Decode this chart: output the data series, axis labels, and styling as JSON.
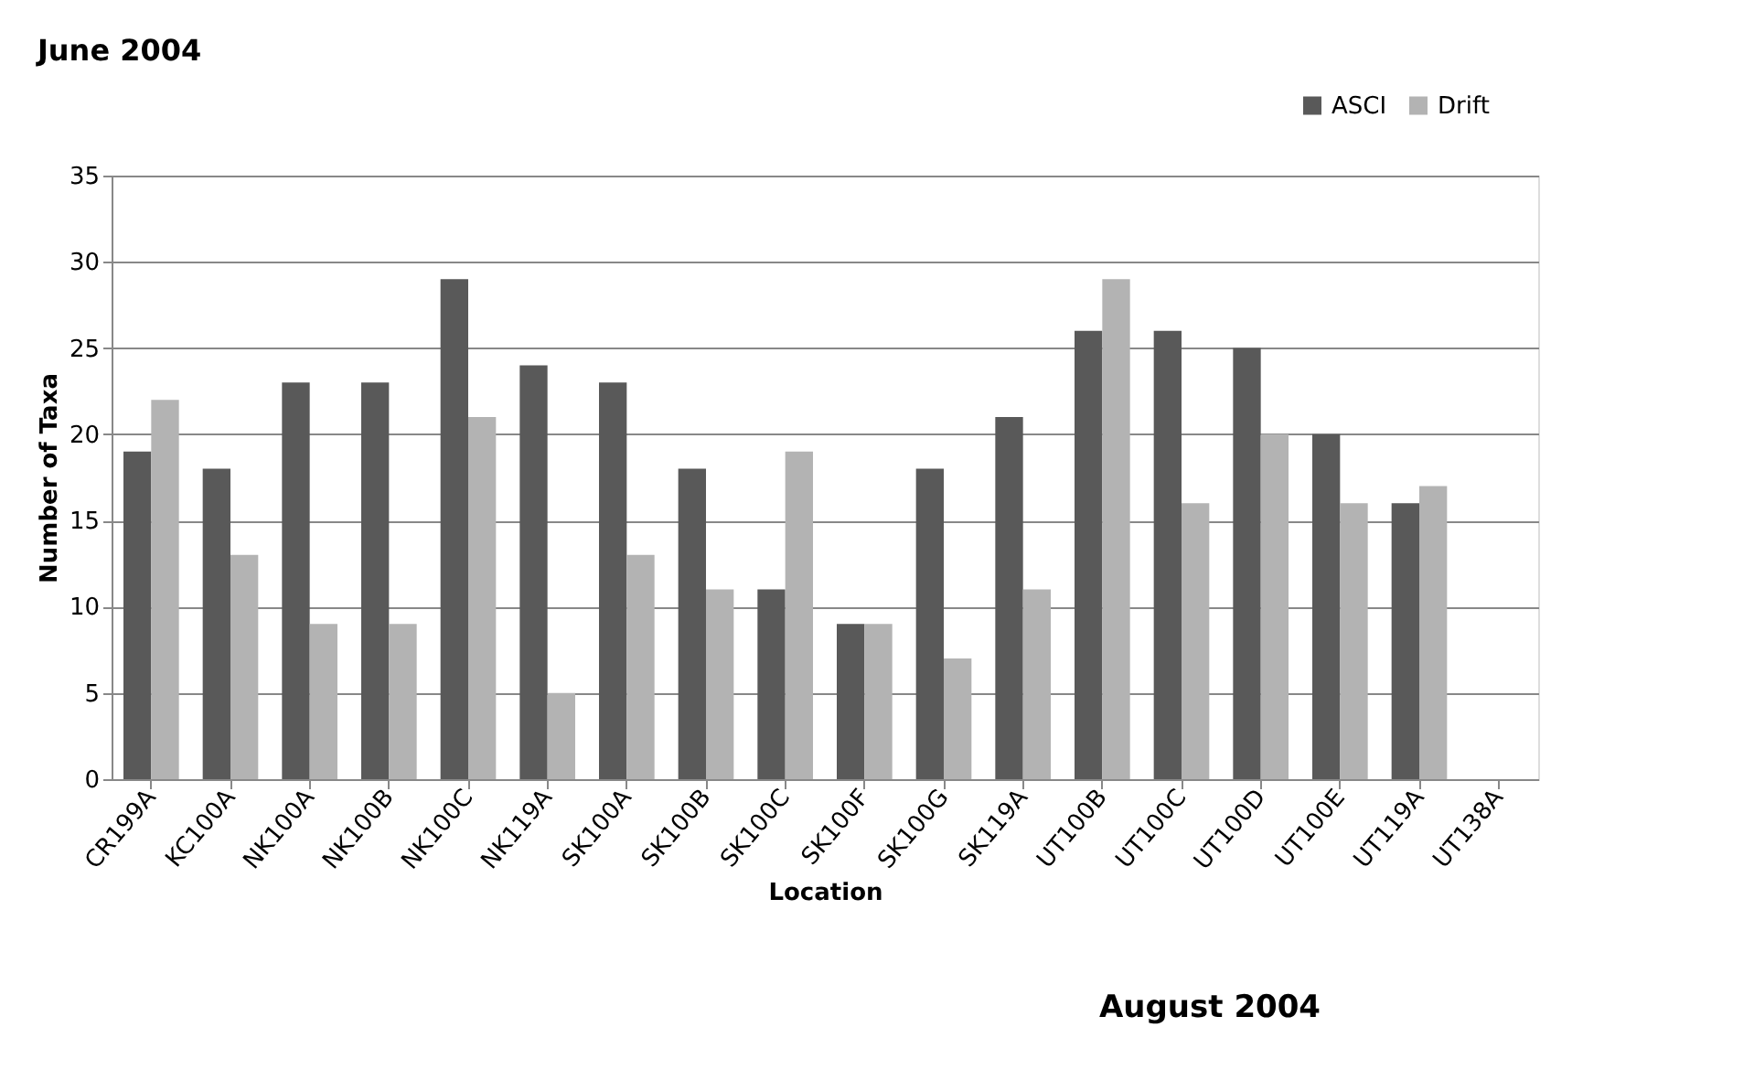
{
  "chart_data": {
    "type": "bar",
    "title": "June 2004",
    "xlabel": "Location",
    "ylabel": "Number of Taxa",
    "categories": [
      "CR199A",
      "KC100A",
      "NK100A",
      "NK100B",
      "NK100C",
      "NK119A",
      "SK100A",
      "SK100B",
      "SK100C",
      "SK100F",
      "SK100G",
      "SK119A",
      "UT100B",
      "UT100C",
      "UT100D",
      "UT100E",
      "UT119A",
      "UT138A"
    ],
    "series": [
      {
        "name": "ASCI",
        "color": "#595959",
        "values": [
          19,
          18,
          23,
          23,
          29,
          24,
          23,
          18,
          11,
          9,
          18,
          21,
          26,
          26,
          25,
          20,
          16,
          null
        ]
      },
      {
        "name": "Drift",
        "color": "#b3b3b3",
        "values": [
          22,
          13,
          9,
          9,
          21,
          5,
          13,
          11,
          19,
          9,
          7,
          11,
          29,
          16,
          20,
          16,
          17,
          null
        ]
      }
    ],
    "ylim": [
      0,
      35
    ],
    "yticks": [
      0,
      5,
      10,
      15,
      20,
      25,
      30,
      35
    ],
    "grid": "y",
    "legend": "top right",
    "annotations": [
      "August 2004"
    ]
  }
}
